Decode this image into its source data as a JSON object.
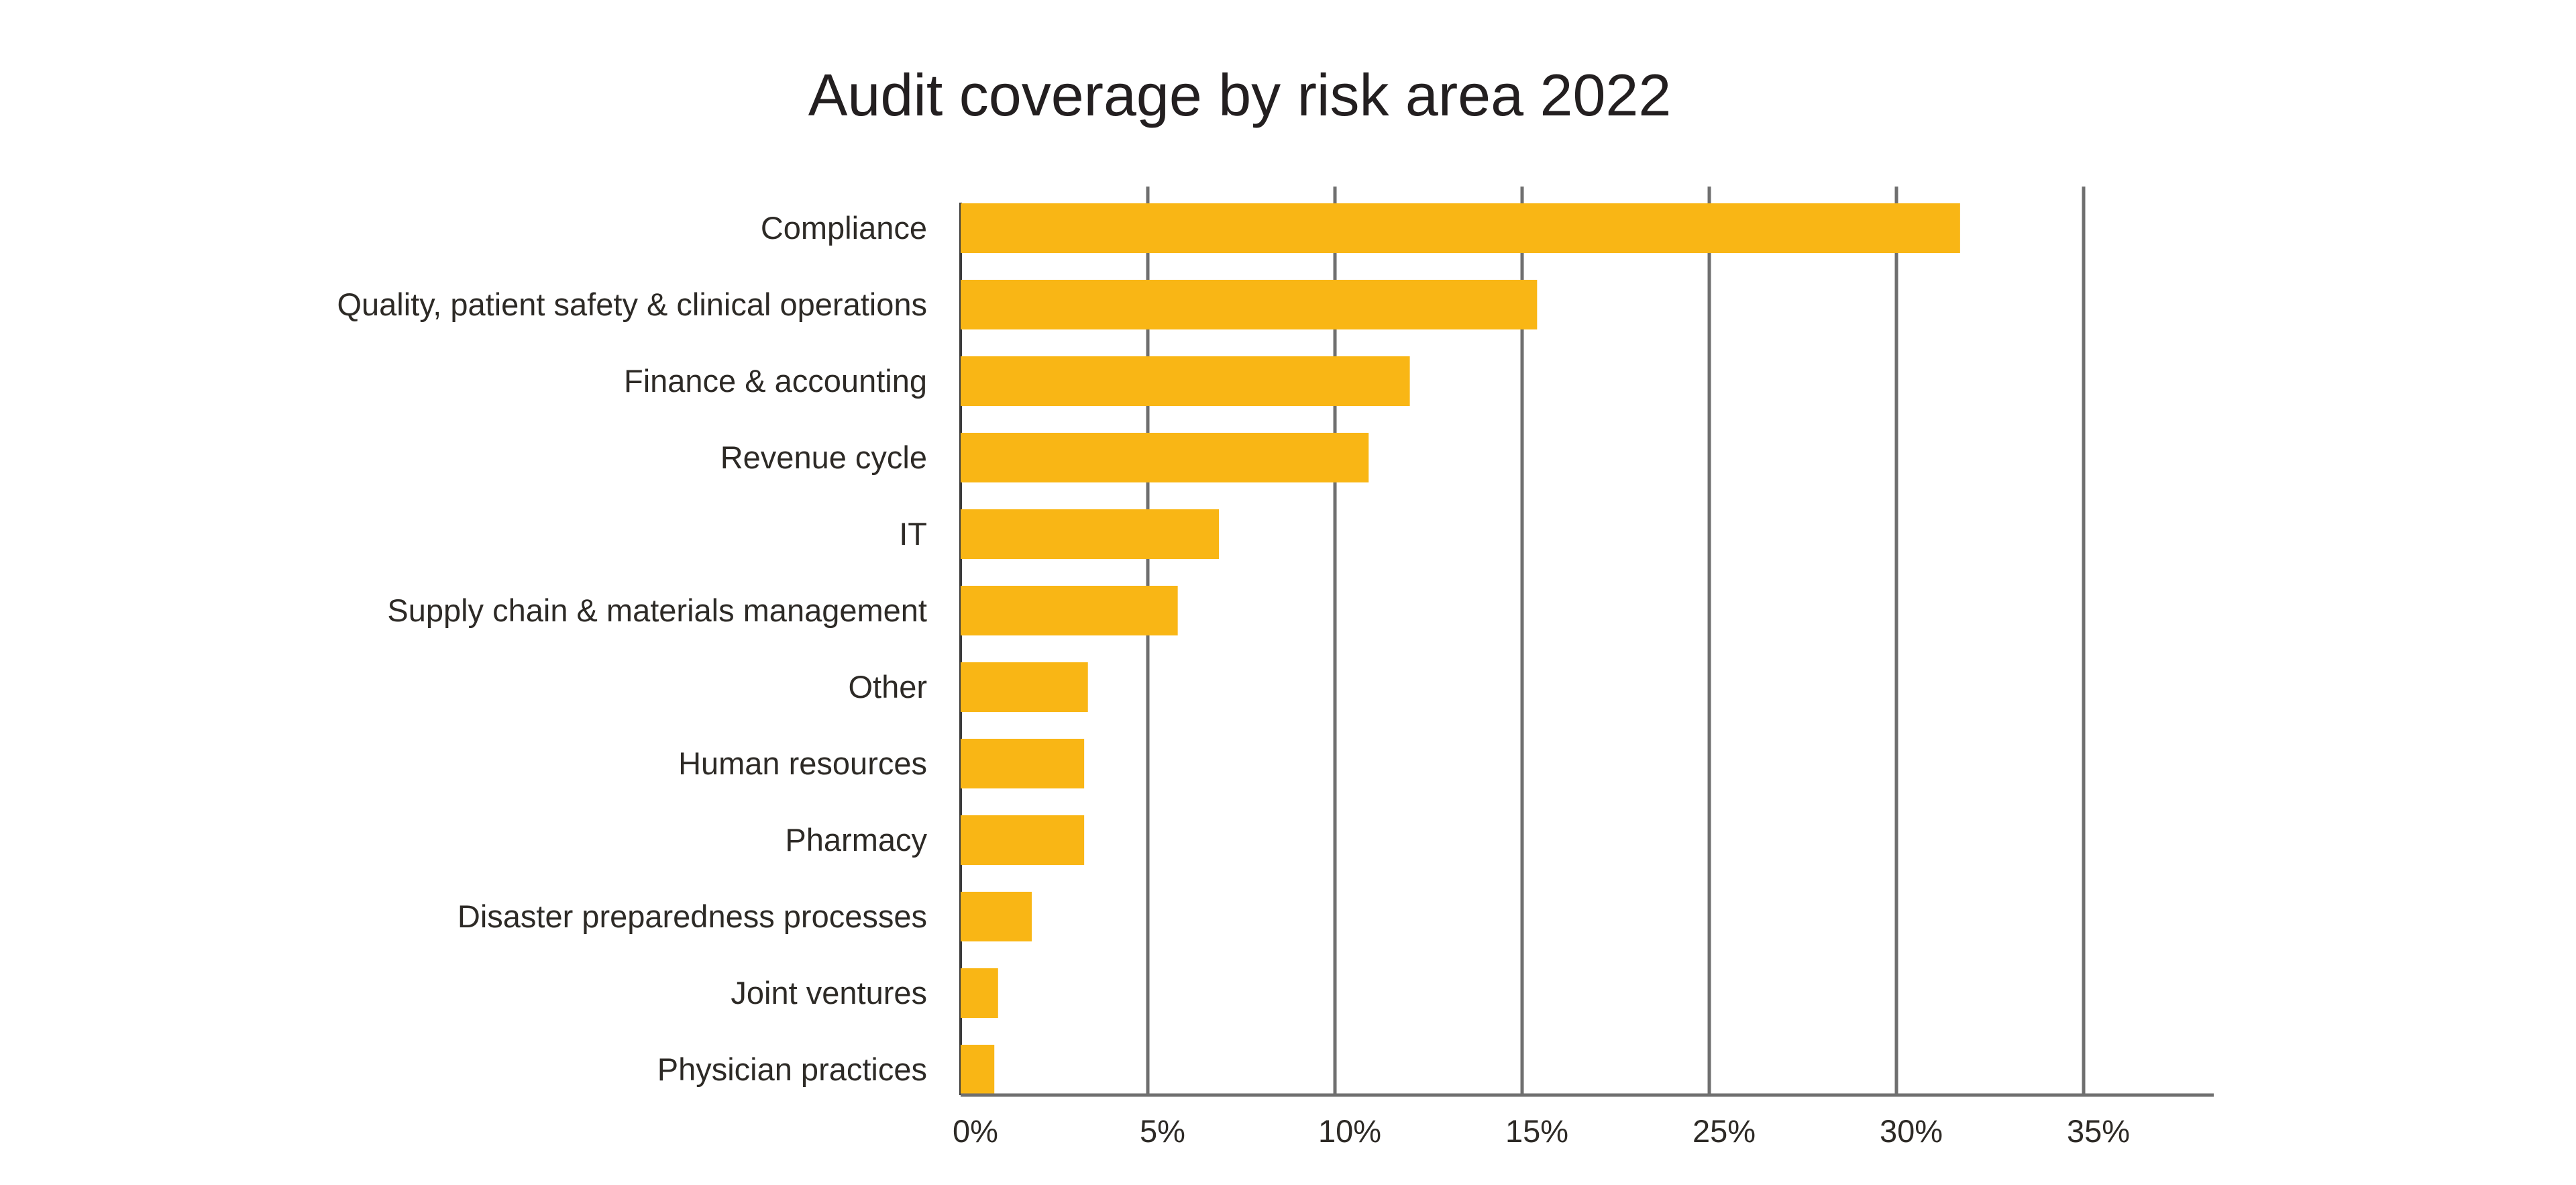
{
  "chart_data": {
    "type": "bar",
    "orientation": "horizontal",
    "title": "Audit coverage by risk area 2022",
    "xlabel": "",
    "ylabel": "",
    "categories": [
      "Compliance",
      "Quality, patient safety & clinical operations",
      "Finance & accounting",
      "Revenue cycle",
      "IT",
      "Supply chain & materials management",
      "Other",
      "Human resources",
      "Pharmacy",
      "Disaster preparedness processes",
      "Joint ventures",
      "Physician practices"
    ],
    "values": [
      26.7,
      15.4,
      12.0,
      10.9,
      6.9,
      5.8,
      3.4,
      3.3,
      3.3,
      1.9,
      1.0,
      0.9
    ],
    "x_ticks": [
      "0%",
      "5%",
      "10%",
      "15%",
      "25%",
      "30%",
      "35%"
    ],
    "xlim": [
      0,
      33.3
    ],
    "grid": true,
    "legend": "none",
    "colors": {
      "bar": "#f9b615",
      "grid": "#6f6f6f",
      "text": "#2d2a26"
    }
  }
}
